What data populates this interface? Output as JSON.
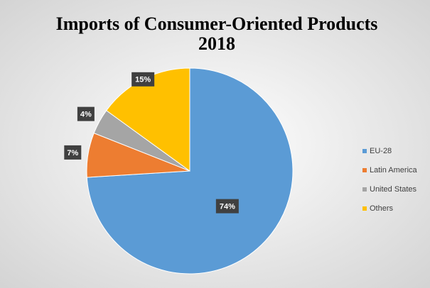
{
  "chart_data": {
    "type": "pie",
    "title": "Imports of Consumer-Oriented Products",
    "subtitle": "2018",
    "categories": [
      "EU-28",
      "Latin America",
      "United States",
      "Others"
    ],
    "values": [
      74,
      7,
      4,
      15
    ],
    "value_labels": [
      "74%",
      "7%",
      "4%",
      "15%"
    ],
    "colors": [
      "#5b9bd5",
      "#ed7d31",
      "#a5a5a5",
      "#ffc000"
    ],
    "legend": "right"
  }
}
